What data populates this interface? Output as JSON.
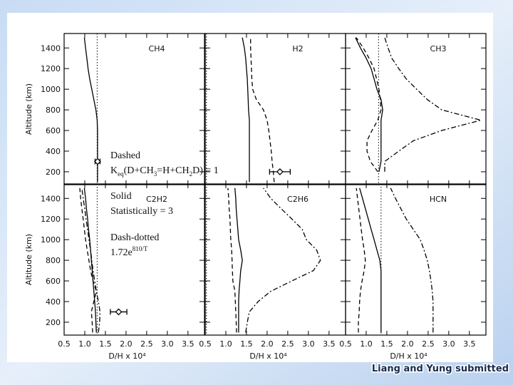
{
  "chart_data": [
    {
      "type": "line",
      "title": "CH4",
      "xlim": [
        0.5,
        3.9
      ],
      "ylim": [
        75,
        1540
      ],
      "xticks": [
        0.5,
        1,
        1.5,
        2,
        2.5,
        3,
        3.5
      ],
      "yticks": [
        200,
        400,
        600,
        800,
        1000,
        1200,
        1400
      ],
      "ylabel": "Altitude  (km)",
      "ref": 1.3,
      "altitude": [
        100,
        200,
        300,
        400,
        500,
        600,
        700,
        800,
        900,
        1000,
        1100,
        1200,
        1300,
        1400,
        1500
      ],
      "series": [
        {
          "style": "solid",
          "color": "#000000",
          "values": [
            1.31,
            1.31,
            1.31,
            1.31,
            1.31,
            1.31,
            1.3,
            1.27,
            1.22,
            1.17,
            1.12,
            1.08,
            1.05,
            1.02,
            0.99
          ]
        }
      ],
      "points": [
        {
          "altitude": 300,
          "value": 1.31,
          "error": 0.06
        }
      ]
    },
    {
      "type": "line",
      "title": "H2",
      "xlim": [
        0.5,
        3.9
      ],
      "ylim": [
        75,
        1540
      ],
      "xticks": [
        0.5,
        1,
        1.5,
        2,
        2.5,
        3,
        3.5
      ],
      "yticks": [
        200,
        400,
        600,
        800,
        1000,
        1200,
        1400
      ],
      "ref": 0.53,
      "altitude": [
        100,
        200,
        300,
        400,
        500,
        600,
        700,
        800,
        900,
        1000,
        1100,
        1200,
        1300,
        1400,
        1500
      ],
      "series": [
        {
          "style": "solid",
          "color": "#000000",
          "values": [
            1.57,
            1.57,
            1.57,
            1.57,
            1.57,
            1.57,
            1.57,
            1.55,
            1.54,
            1.53,
            1.52,
            1.5,
            1.48,
            1.45,
            1.4
          ]
        },
        {
          "style": "dashed",
          "color": "#000000",
          "values": [
            2.17,
            2.15,
            2.12,
            2.1,
            2.07,
            2.04,
            2.0,
            1.91,
            1.74,
            1.65,
            1.63,
            1.62,
            1.61,
            1.6,
            1.6
          ]
        }
      ],
      "points": [
        {
          "altitude": 200,
          "value": 2.31,
          "error": 0.25
        }
      ]
    },
    {
      "type": "line",
      "title": "CH3",
      "xlim": [
        0.5,
        3.9
      ],
      "ylim": [
        75,
        1540
      ],
      "xticks": [
        0.5,
        1,
        1.5,
        2,
        2.5,
        3,
        3.5
      ],
      "yticks": [
        200,
        400,
        600,
        800,
        1000,
        1200,
        1400
      ],
      "ref": 1.3,
      "altitude": [
        100,
        200,
        300,
        400,
        500,
        600,
        700,
        800,
        900,
        1000,
        1100,
        1200,
        1300,
        1400,
        1500
      ],
      "series": [
        {
          "style": "solid",
          "color": "#000000",
          "values": [
            null,
            1.31,
            1.36,
            1.36,
            1.36,
            1.36,
            1.36,
            1.4,
            1.36,
            1.26,
            1.19,
            1.12,
            1.0,
            0.86,
            0.74
          ]
        },
        {
          "style": "dashed",
          "color": "#000000",
          "values": [
            null,
            1.28,
            1.1,
            1.02,
            1.02,
            1.14,
            1.28,
            1.36,
            1.34,
            1.31,
            1.25,
            1.19,
            1.07,
            0.93,
            0.76
          ]
        },
        {
          "style": "dashdot",
          "color": "#000000",
          "values": [
            null,
            1.45,
            1.45,
            1.79,
            2.14,
            2.83,
            3.78,
            2.83,
            2.48,
            2.22,
            1.97,
            1.79,
            1.62,
            1.53,
            1.45
          ]
        }
      ],
      "points": []
    },
    {
      "type": "line",
      "title": "C2H2",
      "xlim": [
        0.5,
        3.9
      ],
      "ylim": [
        75,
        1540
      ],
      "xticks": [
        0.5,
        {
          "value": 1,
          "label": "1.0"
        },
        1.5,
        {
          "value": 2,
          "label": "2.0"
        },
        2.5,
        {
          "value": 3,
          "label": "3.0"
        },
        3.5
      ],
      "yticks": [
        200,
        400,
        600,
        800,
        1000,
        1200,
        1400
      ],
      "ylabel": "Altitude  (km)",
      "xlabel": "D/H x 10⁴",
      "ref": 1.3,
      "altitude": [
        100,
        200,
        300,
        400,
        500,
        600,
        700,
        800,
        900,
        1000,
        1100,
        1200,
        1300,
        1400,
        1500
      ],
      "series": [
        {
          "style": "solid",
          "color": "#000000",
          "values": [
            1.28,
            1.27,
            1.26,
            1.24,
            1.22,
            1.2,
            1.18,
            1.16,
            1.14,
            1.12,
            1.09,
            1.07,
            1.04,
            1.02,
            0.99
          ]
        },
        {
          "style": "dashed",
          "color": "#000000",
          "values": [
            1.19,
            1.18,
            1.16,
            1.22,
            1.28,
            1.2,
            1.14,
            1.1,
            1.06,
            1.02,
            0.99,
            0.96,
            0.93,
            0.9,
            0.88
          ]
        },
        {
          "style": "dashdot",
          "color": "#000000",
          "values": [
            1.33,
            1.36,
            1.37,
            1.33,
            1.28,
            1.24,
            1.2,
            1.17,
            1.14,
            1.1,
            1.07,
            1.03,
            1.0,
            0.96,
            0.93
          ]
        }
      ],
      "points": [
        {
          "altitude": 300,
          "value": 1.82,
          "error": 0.2
        }
      ]
    },
    {
      "type": "line",
      "title": "C2H6",
      "xlim": [
        0.5,
        3.9
      ],
      "ylim": [
        75,
        1540
      ],
      "xticks": [
        0.5,
        {
          "value": 1,
          "label": "1.0"
        },
        1.5,
        {
          "value": 2,
          "label": "2.0"
        },
        2.5,
        {
          "value": 3,
          "label": "3.0"
        },
        3.5
      ],
      "yticks": [
        200,
        400,
        600,
        800,
        1000,
        1200,
        1400
      ],
      "xlabel": "D/H x 10⁴",
      "ref": 0.53,
      "altitude": [
        100,
        200,
        300,
        400,
        500,
        600,
        700,
        800,
        900,
        1000,
        1100,
        1200,
        1300,
        1400,
        1500
      ],
      "series": [
        {
          "style": "solid",
          "color": "#000000",
          "values": [
            1.31,
            1.31,
            1.31,
            1.31,
            1.32,
            1.34,
            1.36,
            1.4,
            1.36,
            1.31,
            1.29,
            1.27,
            1.25,
            1.24,
            1.22
          ]
        },
        {
          "style": "dashed",
          "color": "#000000",
          "values": [
            1.26,
            1.25,
            1.24,
            1.23,
            1.22,
            1.17,
            1.16,
            1.15,
            1.14,
            1.12,
            1.11,
            1.1,
            1.08,
            1.07,
            1.05
          ]
        },
        {
          "style": "dashdot",
          "color": "#000000",
          "values": [
            1.48,
            1.52,
            1.57,
            1.78,
            2.09,
            2.6,
            3.12,
            3.29,
            3.2,
            2.95,
            2.85,
            2.6,
            2.34,
            2.09,
            1.91
          ]
        }
      ],
      "points": []
    },
    {
      "type": "line",
      "title": "HCN",
      "xlim": [
        0.5,
        3.9
      ],
      "ylim": [
        75,
        1540
      ],
      "xticks": [
        0.5,
        {
          "value": 1,
          "label": "1.0"
        },
        1.5,
        {
          "value": 2,
          "label": "2.0"
        },
        2.5,
        {
          "value": 3,
          "label": "3.0"
        },
        3.5
      ],
      "yticks": [
        200,
        400,
        600,
        800,
        1000,
        1200,
        1400
      ],
      "xlabel": "D/H x 10⁴",
      "ref": 1.36,
      "altitude": [
        100,
        200,
        300,
        400,
        500,
        600,
        700,
        800,
        900,
        1000,
        1100,
        1200,
        1300,
        1400,
        1500
      ],
      "series": [
        {
          "style": "solid",
          "color": "#000000",
          "values": [
            1.36,
            1.36,
            1.36,
            1.36,
            1.36,
            1.36,
            1.36,
            1.33,
            1.26,
            1.19,
            1.12,
            1.05,
            0.98,
            0.91,
            0.84
          ]
        },
        {
          "style": "dashed",
          "color": "#000000",
          "values": [
            0.81,
            0.81,
            0.83,
            0.84,
            0.86,
            0.9,
            0.95,
            0.98,
            0.95,
            0.91,
            0.88,
            0.85,
            0.82,
            0.79,
            0.76
          ]
        },
        {
          "style": "dashdot",
          "color": "#000000",
          "values": [
            2.62,
            2.62,
            2.62,
            2.62,
            2.6,
            2.57,
            2.53,
            2.48,
            2.4,
            2.31,
            2.14,
            1.97,
            1.84,
            1.71,
            1.59
          ]
        }
      ],
      "points": []
    }
  ],
  "annotations": [
    "Dashed",
    [
      "K",
      "eq",
      "(D+CH",
      "3",
      "=H+CH",
      "2",
      "D) = 1"
    ],
    "Solid",
    "Statistically = 3",
    "Dash-dotted",
    [
      "1.72e",
      "810/T"
    ]
  ],
  "footer": "Liang and Yung submitted"
}
